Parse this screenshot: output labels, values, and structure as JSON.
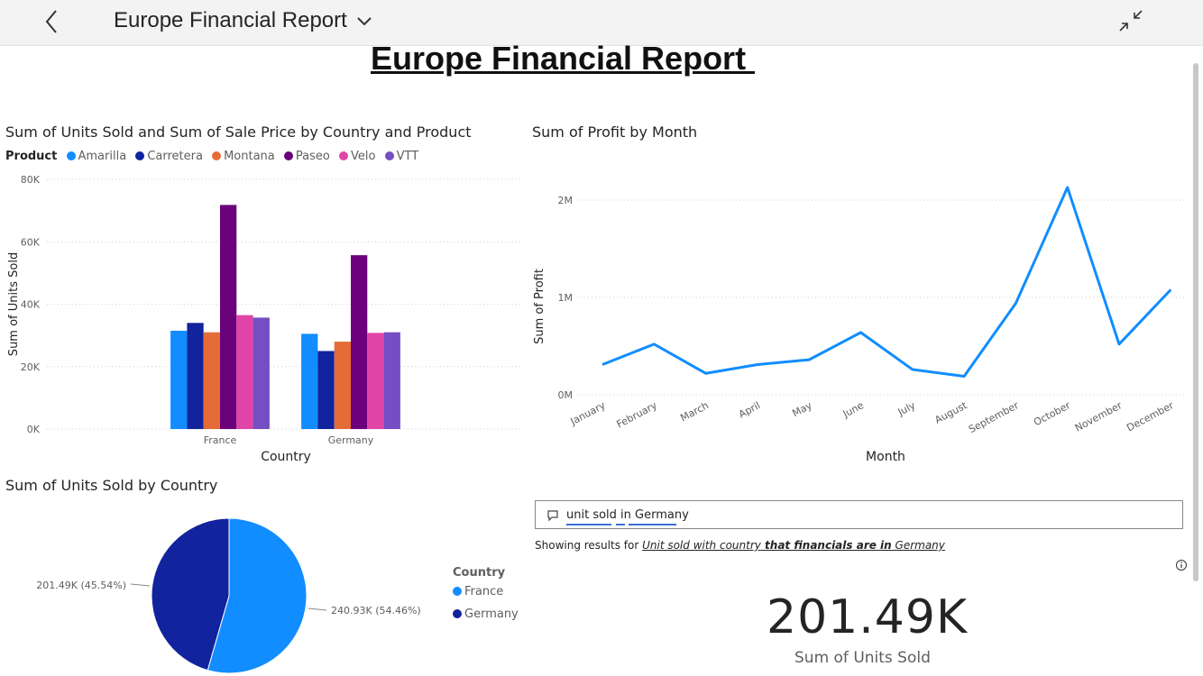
{
  "header": {
    "title": "Europe Financial Report"
  },
  "report_title": "Europe Financial Report ",
  "colors": {
    "Amarilla": "#118dff",
    "Carretera": "#12239e",
    "Montana": "#e66c37",
    "Paseo": "#6b007b",
    "Velo": "#e044a7",
    "VTT": "#744ec2",
    "France": "#118dff",
    "Germany": "#12239e",
    "line": "#118dff"
  },
  "bar_visual": {
    "title": "Sum of Units Sold and Sum of Sale Price by Country and Product",
    "legend_title": "Product",
    "legend": [
      "Amarilla",
      "Carretera",
      "Montana",
      "Paseo",
      "Velo",
      "VTT"
    ]
  },
  "line_visual": {
    "title": "Sum of Profit by Month"
  },
  "pie_visual": {
    "title": "Sum of Units Sold by Country",
    "legend_title": "Country",
    "legend": [
      "France",
      "Germany"
    ]
  },
  "qna": {
    "input_value": "unit sold in Germany",
    "showing_prefix": "Showing results for ",
    "showing_part1": "Unit sold with country",
    "showing_part2": " that financials are in",
    "showing_part3": " Germany"
  },
  "card": {
    "value": "201.49K",
    "label": "Sum of Units Sold"
  },
  "chart_data": [
    {
      "type": "bar",
      "title": "Sum of Units Sold and Sum of Sale Price by Country and Product",
      "xlabel": "Country",
      "ylabel": "Sum of Units Sold",
      "ylim": [
        0,
        80000
      ],
      "yticks": [
        "0K",
        "20K",
        "40K",
        "60K",
        "80K"
      ],
      "yticks_values": [
        0,
        20000,
        40000,
        60000,
        80000
      ],
      "categories": [
        "France",
        "Germany"
      ],
      "series": [
        {
          "name": "Amarilla",
          "values": [
            31500,
            30500
          ]
        },
        {
          "name": "Carretera",
          "values": [
            34000,
            25000
          ]
        },
        {
          "name": "Montana",
          "values": [
            31000,
            28000
          ]
        },
        {
          "name": "Paseo",
          "values": [
            71800,
            55700
          ]
        },
        {
          "name": "Velo",
          "values": [
            36500,
            30800
          ]
        },
        {
          "name": "VTT",
          "values": [
            35700,
            31000
          ]
        }
      ]
    },
    {
      "type": "line",
      "title": "Sum of Profit by Month",
      "xlabel": "Month",
      "ylabel": "Sum of Profit",
      "ylim": [
        0,
        2000000
      ],
      "yticks": [
        "0M",
        "1M",
        "2M"
      ],
      "yticks_values": [
        0,
        1000000,
        2000000
      ],
      "x": [
        "January",
        "February",
        "March",
        "April",
        "May",
        "June",
        "July",
        "August",
        "September",
        "October",
        "November",
        "December"
      ],
      "values": [
        310000,
        520000,
        220000,
        310000,
        360000,
        640000,
        260000,
        190000,
        940000,
        2130000,
        520000,
        1080000
      ]
    },
    {
      "type": "pie",
      "title": "Sum of Units Sold by Country",
      "categories": [
        "France",
        "Germany"
      ],
      "values": [
        240930,
        201490
      ],
      "labels": [
        "240.93K (54.46%)",
        "201.49K (45.54%)"
      ]
    }
  ]
}
